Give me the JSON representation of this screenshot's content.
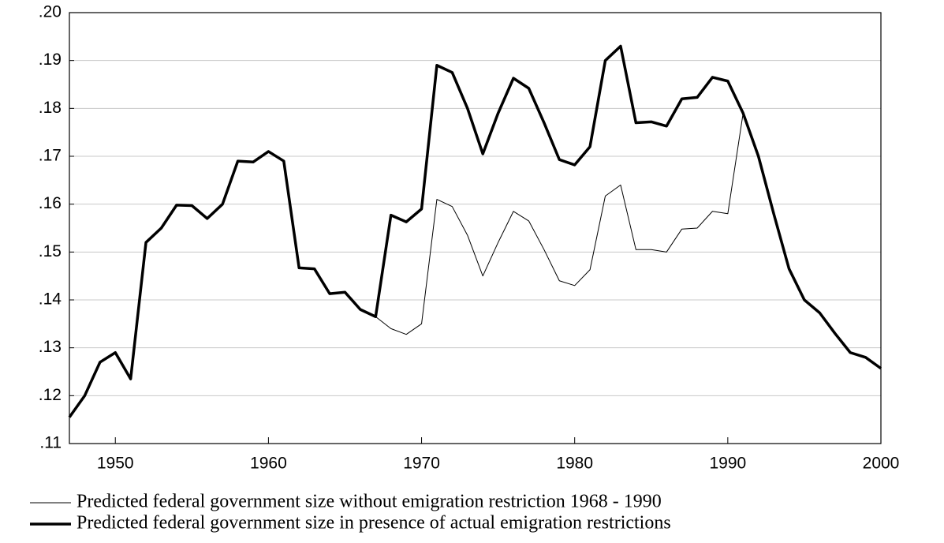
{
  "chart_data": {
    "type": "line",
    "x": [
      1947,
      1948,
      1949,
      1950,
      1951,
      1952,
      1953,
      1954,
      1955,
      1956,
      1957,
      1958,
      1959,
      1960,
      1961,
      1962,
      1963,
      1964,
      1965,
      1966,
      1967,
      1968,
      1969,
      1970,
      1971,
      1972,
      1973,
      1974,
      1975,
      1976,
      1977,
      1978,
      1979,
      1980,
      1981,
      1982,
      1983,
      1984,
      1985,
      1986,
      1987,
      1988,
      1989,
      1990,
      1991,
      1992,
      1993,
      1994,
      1995,
      1996,
      1997,
      1998,
      1999,
      2000
    ],
    "series": [
      {
        "name": "Predicted federal government size without emigration restriction 1968 - 1990",
        "color": "#000000",
        "width": 1,
        "values": [
          null,
          null,
          null,
          null,
          null,
          null,
          null,
          null,
          null,
          null,
          null,
          null,
          null,
          null,
          null,
          null,
          null,
          null,
          null,
          null,
          0.1365,
          0.134,
          0.1328,
          0.135,
          0.161,
          0.1595,
          0.1535,
          0.145,
          0.152,
          0.1585,
          0.1565,
          0.1505,
          0.144,
          0.143,
          0.1463,
          0.1617,
          0.164,
          0.1505,
          0.1505,
          0.15,
          0.1548,
          0.155,
          0.1585,
          0.158,
          0.179,
          null,
          null,
          null,
          null,
          null,
          null,
          null,
          null,
          null
        ]
      },
      {
        "name": "Predicted federal government size in presence of actual emigration restrictions",
        "color": "#000000",
        "width": 3.5,
        "values": [
          0.1155,
          0.12,
          0.127,
          0.129,
          0.1235,
          0.152,
          0.155,
          0.1598,
          0.1597,
          0.157,
          0.16,
          0.169,
          0.1688,
          0.171,
          0.169,
          0.1467,
          0.1465,
          0.1413,
          0.1416,
          0.138,
          0.1365,
          0.1577,
          0.1563,
          0.159,
          0.189,
          0.1875,
          0.18,
          0.1705,
          0.179,
          0.1863,
          0.1842,
          0.177,
          0.1693,
          0.1682,
          0.172,
          0.19,
          0.193,
          0.177,
          0.1772,
          0.1763,
          0.182,
          0.1823,
          0.1865,
          0.1857,
          0.179,
          0.17,
          0.158,
          0.1465,
          0.14,
          0.1373,
          0.133,
          0.129,
          0.128,
          0.1257
        ]
      }
    ],
    "xlim": [
      1947,
      2000
    ],
    "xticks": [
      1950,
      1960,
      1970,
      1980,
      1990,
      2000
    ],
    "ylim": [
      0.11,
      0.2
    ],
    "yticks": [
      {
        "value": 0.11,
        "label": ".11"
      },
      {
        "value": 0.12,
        "label": ".12"
      },
      {
        "value": 0.13,
        "label": ".13"
      },
      {
        "value": 0.14,
        "label": ".14"
      },
      {
        "value": 0.15,
        "label": ".15"
      },
      {
        "value": 0.16,
        "label": ".16"
      },
      {
        "value": 0.17,
        "label": ".17"
      },
      {
        "value": 0.18,
        "label": ".18"
      },
      {
        "value": 0.19,
        "label": ".19"
      },
      {
        "value": 0.2,
        "label": ".20"
      }
    ],
    "grid": true
  }
}
